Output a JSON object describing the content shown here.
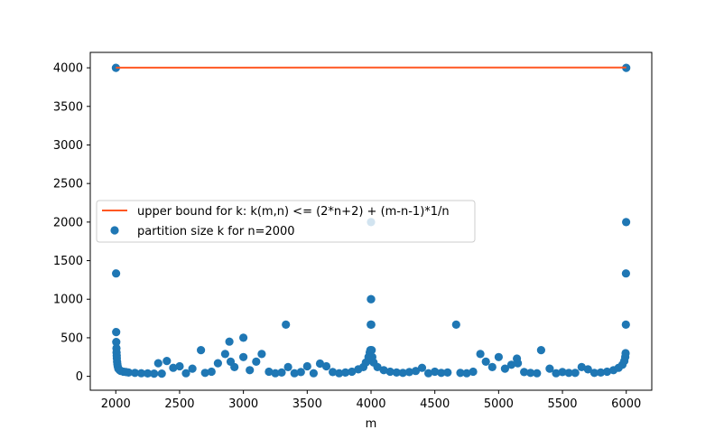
{
  "chart_data": {
    "type": "scatter",
    "title": "",
    "xlabel": "m",
    "ylabel": "",
    "xlim": [
      1800,
      6200
    ],
    "ylim": [
      -180,
      4200
    ],
    "xticks": [
      2000,
      2500,
      3000,
      3500,
      4000,
      4500,
      5000,
      5500,
      6000
    ],
    "yticks": [
      0,
      500,
      1000,
      1500,
      2000,
      2500,
      3000,
      3500,
      4000
    ],
    "grid": false,
    "legend_position": "center-left",
    "colors": {
      "line": "#ff5722",
      "points": "#1f77b4"
    },
    "series": [
      {
        "name": "upper bound for k: k(m,n) <= (2*n+2) + (m-n-1)*1/n",
        "kind": "line",
        "x": [
          2000,
          6000
        ],
        "y": [
          4002,
          4004
        ]
      },
      {
        "name": "partition size k for n=2000",
        "kind": "scatter",
        "x": [
          2001,
          2002,
          2003,
          2004,
          2005,
          2006,
          2007,
          2008,
          2010,
          2012,
          2015,
          2020,
          2030,
          2040,
          2060,
          2080,
          2100,
          2150,
          2200,
          2250,
          2300,
          2333,
          2360,
          2400,
          2450,
          2500,
          2550,
          2600,
          2667,
          2700,
          2750,
          2800,
          2857,
          2890,
          2900,
          2930,
          3000,
          3000,
          3050,
          3100,
          3143,
          3200,
          3250,
          3300,
          3333,
          3350,
          3400,
          3450,
          3500,
          3550,
          3600,
          3650,
          3700,
          3750,
          3800,
          3850,
          3900,
          3940,
          3960,
          3980,
          3990,
          3995,
          3998,
          3999,
          4000,
          4001,
          4002,
          4005,
          4010,
          4020,
          4050,
          4100,
          4150,
          4200,
          4250,
          4300,
          4350,
          4400,
          4450,
          4500,
          4550,
          4600,
          4667,
          4700,
          4750,
          4800,
          4857,
          4900,
          4950,
          5000,
          5050,
          5100,
          5143,
          5150,
          5200,
          5250,
          5300,
          5333,
          5400,
          5450,
          5500,
          5550,
          5600,
          5650,
          5700,
          5750,
          5800,
          5850,
          5900,
          5940,
          5970,
          5985,
          5992,
          5995,
          5997,
          5998,
          5999,
          6000
        ],
        "y": [
          4000,
          1334,
          574,
          445,
          364,
          308,
          267,
          236,
          190,
          160,
          130,
          100,
          80,
          70,
          60,
          55,
          50,
          45,
          40,
          38,
          36,
          170,
          35,
          200,
          110,
          130,
          40,
          100,
          340,
          45,
          60,
          170,
          290,
          450,
          190,
          120,
          500,
          250,
          80,
          190,
          290,
          60,
          40,
          50,
          670,
          120,
          40,
          55,
          130,
          40,
          165,
          130,
          55,
          40,
          50,
          60,
          90,
          120,
          180,
          250,
          310,
          340,
          670,
          1000,
          2000,
          1000,
          670,
          340,
          250,
          180,
          120,
          80,
          60,
          50,
          45,
          55,
          70,
          110,
          40,
          60,
          45,
          50,
          670,
          45,
          40,
          60,
          290,
          190,
          120,
          250,
          100,
          150,
          230,
          170,
          55,
          45,
          40,
          340,
          100,
          40,
          55,
          45,
          45,
          120,
          90,
          45,
          50,
          60,
          80,
          110,
          150,
          200,
          250,
          300,
          670,
          1334,
          2000,
          4000
        ]
      }
    ]
  }
}
